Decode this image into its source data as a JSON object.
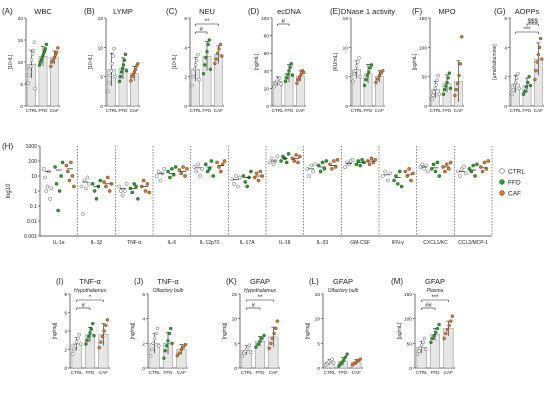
{
  "colors": {
    "CTRL": "#ffffff",
    "FFD": "#1fa51f",
    "CAF": "#e07a22",
    "bar": "#e6e6e6",
    "axis": "#333333"
  },
  "groups": [
    "CTRL",
    "FFD",
    "CAF"
  ],
  "chart_data": [
    {
      "type": "bar",
      "panel": "(A)",
      "title": "WBC",
      "ylabel": "[10⁹/L]",
      "categories": [
        "CTRL",
        "FFD",
        "CAF"
      ],
      "ylim": [
        0,
        20
      ],
      "yticks": [
        "0",
        "5",
        "10",
        "15",
        "20"
      ],
      "values": [
        9.5,
        11.3,
        11.0
      ],
      "errors": [
        3.2,
        2.2,
        1.5
      ],
      "points": [
        [
          5.2,
          7.0,
          8.5,
          9.0,
          10.5,
          11.8,
          12.6,
          14.5,
          4.0
        ],
        [
          9.3,
          10.0,
          10.6,
          11.2,
          11.8,
          12.4,
          13.0,
          14.0
        ],
        [
          9.0,
          10.0,
          10.4,
          11.0,
          11.6,
          12.2,
          13.2
        ]
      ],
      "sig": []
    },
    {
      "type": "bar",
      "panel": "(B)",
      "title": "LYMP",
      "ylabel": "[10⁹/L]",
      "categories": [
        "CTRL",
        "FFD",
        "CAF"
      ],
      "ylim": [
        0,
        15
      ],
      "yticks": [
        "0",
        "5",
        "10",
        "15"
      ],
      "values": [
        6.2,
        6.4,
        5.5
      ],
      "errors": [
        2.8,
        1.8,
        1.2
      ],
      "points": [
        [
          2.5,
          4.0,
          5.2,
          6.0,
          7.2,
          8.5,
          9.8,
          5.0
        ],
        [
          4.2,
          5.0,
          5.8,
          6.4,
          7.0,
          7.8,
          8.8,
          6.0
        ],
        [
          4.3,
          5.0,
          5.4,
          5.8,
          6.2,
          6.8,
          7.2
        ]
      ],
      "sig": []
    },
    {
      "type": "bar",
      "panel": "(C)",
      "title": "NEU",
      "ylabel": "[10⁹/L]",
      "categories": [
        "CTRL",
        "FFD",
        "CAF"
      ],
      "ylim": [
        0,
        6
      ],
      "yticks": [
        "0",
        "2",
        "4",
        "6"
      ],
      "values": [
        2.5,
        3.4,
        3.5
      ],
      "errors": [
        0.8,
        1.0,
        0.6
      ],
      "points": [
        [
          1.4,
          2.0,
          2.5,
          2.8,
          3.1,
          3.5,
          1.8
        ],
        [
          2.2,
          2.8,
          3.3,
          3.7,
          4.2,
          4.5,
          2.5
        ],
        [
          2.9,
          3.2,
          3.6,
          3.9,
          4.2,
          3.4
        ]
      ],
      "sig": [
        {
          "from": 0,
          "to": 1,
          "label": "#"
        },
        {
          "from": 0,
          "to": 2,
          "label": "**"
        }
      ]
    },
    {
      "type": "bar",
      "panel": "(D)",
      "title": "ecDNA",
      "ylabel": "[ng/mL]",
      "categories": [
        "CTRL",
        "FFD",
        "CAF"
      ],
      "ylim": [
        0,
        100
      ],
      "yticks": [
        "0",
        "20",
        "40",
        "60",
        "80",
        "100"
      ],
      "values": [
        28,
        37,
        34
      ],
      "errors": [
        5,
        10,
        6
      ],
      "points": [
        [
          22,
          26,
          28,
          30,
          32,
          25
        ],
        [
          28,
          32,
          36,
          40,
          44,
          48,
          35
        ],
        [
          26,
          30,
          33,
          36,
          40,
          38
        ]
      ],
      "sig": [
        {
          "from": 0,
          "to": 1,
          "label": "#"
        }
      ]
    },
    {
      "type": "bar",
      "panel": "(E)",
      "title": "DNase 1 activity",
      "ylabel": "[KU/mL]",
      "categories": [
        "CTRL",
        "FFD",
        "CAF"
      ],
      "ylim": [
        0,
        15
      ],
      "yticks": [
        "0",
        "5",
        "10",
        "15"
      ],
      "values": [
        6.2,
        5.5,
        5.0
      ],
      "errors": [
        1.5,
        1.6,
        1.0
      ],
      "points": [
        [
          4.2,
          5.5,
          6.0,
          6.8,
          7.5,
          8.2,
          5.0
        ],
        [
          3.5,
          4.5,
          5.2,
          5.8,
          6.5,
          7.0
        ],
        [
          4.0,
          4.6,
          5.2,
          5.6,
          6.0
        ]
      ],
      "sig": []
    },
    {
      "type": "bar",
      "panel": "(F)",
      "title": "MPO",
      "ylabel": "[pg/mL]",
      "categories": [
        "CTRL",
        "FFD",
        "CAF"
      ],
      "ylim": [
        0,
        150
      ],
      "yticks": [
        "0",
        "50",
        "100",
        "150"
      ],
      "values": [
        28,
        38,
        42
      ],
      "errors": [
        14,
        15,
        35
      ],
      "points": [
        [
          12,
          18,
          24,
          30,
          36,
          44,
          52,
          20
        ],
        [
          20,
          28,
          34,
          40,
          48,
          56,
          30
        ],
        [
          18,
          28,
          38,
          52,
          72,
          118
        ]
      ],
      "sig": []
    },
    {
      "type": "bar",
      "panel": "(G)",
      "title": "AOPPs",
      "ylabel": "[µmol/albumine]",
      "categories": [
        "CTRL",
        "FFD",
        "CAF"
      ],
      "ylim": [
        0,
        6
      ],
      "yticks": [
        "0",
        "2",
        "4",
        "6"
      ],
      "values": [
        1.5,
        1.4,
        3.2
      ],
      "errors": [
        0.6,
        0.5,
        1.1
      ],
      "points": [
        [
          0.8,
          1.1,
          1.4,
          1.6,
          1.9,
          2.2,
          1.2
        ],
        [
          0.8,
          1.0,
          1.3,
          1.6,
          2.0,
          1.4
        ],
        [
          1.8,
          2.4,
          3.0,
          3.5,
          4.0,
          4.6,
          3.2
        ]
      ],
      "sig": [
        {
          "from": 0,
          "to": 2,
          "label": "***"
        },
        {
          "from": 1,
          "to": 2,
          "label": "$$$"
        }
      ]
    },
    {
      "type": "scatter",
      "panel": "(H)",
      "ylabel": "log10",
      "ylim": [
        0.001,
        1000
      ],
      "log": true,
      "yticks": [
        "0.001",
        "0.01",
        "0.1",
        "1",
        "10",
        "100",
        "1000"
      ],
      "categories": [
        "IL-1α",
        "IL-1β",
        "TNF-α",
        "IL-6",
        "IL-12p70",
        "IL-17A",
        "IL-18",
        "IL-33",
        "GM-CSF",
        "IFN-γ",
        "CXCL1/KC",
        "CCL2/MCP-1"
      ],
      "legend": [
        "CTRL",
        "FFD",
        "CAF"
      ],
      "series": [
        {
          "name": "CTRL",
          "values": [
            [
              30,
              8,
              1,
              2,
              20,
              0.3,
              1.5
            ],
            [
              2,
              0.03,
              5,
              1.5,
              8,
              3
            ],
            [
              2,
              1,
              0.5,
              1,
              3
            ],
            [
              10,
              20,
              5,
              15,
              30
            ],
            [
              40,
              20,
              60,
              10,
              30
            ],
            [
              6,
              3,
              10,
              2,
              8
            ],
            [
              80,
              150,
              60,
              100,
              200
            ],
            [
              30,
              10,
              50,
              20,
              60
            ],
            [
              40,
              80,
              60,
              100,
              120
            ],
            [
              10,
              20,
              5,
              15
            ],
            [
              40,
              60,
              30,
              50,
              20
            ],
            [
              20,
              10,
              30,
              40,
              15
            ]
          ],
          "mean": [
            20,
            4,
            1.5,
            15,
            35,
            6,
            100,
            30,
            70,
            12,
            40,
            20
          ]
        },
        {
          "name": "FFD",
          "values": [
            [
              40,
              3,
              0.05,
              1,
              10,
              80
            ],
            [
              3,
              1,
              0.3,
              2,
              5
            ],
            [
              1.5,
              0.8,
              3,
              2,
              0.3
            ],
            [
              20,
              8,
              30,
              12,
              40
            ],
            [
              60,
              20,
              30,
              100,
              10
            ],
            [
              10,
              4,
              2,
              8,
              20
            ],
            [
              100,
              200,
              150,
              80,
              300
            ],
            [
              50,
              20,
              80,
              30,
              100
            ],
            [
              60,
              100,
              50,
              120,
              80
            ],
            [
              5,
              10,
              3,
              20,
              2
            ],
            [
              30,
              60,
              20,
              80,
              10
            ],
            [
              30,
              20,
              50,
              10,
              60
            ]
          ],
          "mean": [
            25,
            2,
            1.5,
            15,
            40,
            8,
            150,
            40,
            80,
            8,
            35,
            25
          ]
        },
        {
          "name": "CAF",
          "values": [
            [
              50,
              20,
              5,
              80,
              10,
              2
            ],
            [
              4,
              2,
              8,
              1,
              3
            ],
            [
              2,
              5,
              1,
              3,
              0.8
            ],
            [
              25,
              15,
              40,
              10,
              30
            ],
            [
              80,
              40,
              20,
              60,
              100
            ],
            [
              8,
              15,
              5,
              20,
              10
            ],
            [
              150,
              100,
              250,
              80,
              200
            ],
            [
              60,
              30,
              100,
              40,
              120
            ],
            [
              100,
              60,
              150,
              80,
              120
            ],
            [
              20,
              10,
              30,
              5,
              15
            ],
            [
              40,
              20,
              60,
              30,
              80
            ],
            [
              40,
              20,
              80,
              30,
              100
            ]
          ],
          "mean": [
            30,
            3,
            2,
            20,
            50,
            10,
            150,
            50,
            100,
            12,
            40,
            35
          ]
        }
      ]
    },
    {
      "type": "bar",
      "panel": "(I)",
      "title": "TNF-α",
      "subtitle": "Hypothalamus",
      "ylabel": "[ng/mg]",
      "categories": [
        "CTRL",
        "FFD",
        "CAF"
      ],
      "ylim": [
        0,
        8
      ],
      "yticks": [
        "0",
        "2",
        "4",
        "6",
        "8"
      ],
      "values": [
        2.6,
        3.6,
        3.6
      ],
      "errors": [
        0.7,
        0.8,
        1.2
      ],
      "points": [
        [
          1.5,
          2.0,
          2.4,
          2.8,
          3.2,
          3.6,
          2.6
        ],
        [
          2.6,
          3.0,
          3.4,
          3.8,
          4.2,
          4.8,
          3.5
        ],
        [
          2.2,
          2.8,
          3.4,
          4.0,
          4.6,
          5.2
        ]
      ],
      "sig": [
        {
          "from": 0,
          "to": 1,
          "label": "#"
        },
        {
          "from": 0,
          "to": 2,
          "label": "*"
        }
      ]
    },
    {
      "type": "bar",
      "panel": "(J)",
      "title": "TNF-α",
      "subtitle": "Olfactory bulb",
      "ylabel": "[ng/mg]",
      "categories": [
        "CTRL",
        "FFD",
        "CAF"
      ],
      "ylim": [
        0,
        6
      ],
      "yticks": [
        "0",
        "2",
        "4",
        "6"
      ],
      "values": [
        2.0,
        2.0,
        1.5
      ],
      "errors": [
        0.8,
        0.9,
        0.4
      ],
      "points": [
        [
          1.0,
          1.5,
          2.0,
          2.4,
          2.8,
          3.2,
          1.8
        ],
        [
          0.8,
          1.4,
          1.8,
          2.2,
          2.8,
          3.2,
          2.0
        ],
        [
          1.0,
          1.2,
          1.5,
          1.7,
          1.9
        ]
      ],
      "sig": []
    },
    {
      "type": "bar",
      "panel": "(K)",
      "title": "GFAP",
      "subtitle": "Hypothalamus",
      "ylabel": "[ng/mg]",
      "categories": [
        "CTRL",
        "FFD",
        "CAF"
      ],
      "ylim": [
        0,
        15
      ],
      "yticks": [
        "0",
        "5",
        "10",
        "15"
      ],
      "values": [
        3.6,
        5.4,
        6.3
      ],
      "errors": [
        0.9,
        1.0,
        2.0
      ],
      "points": [
        [
          2.4,
          3.0,
          3.4,
          3.8,
          4.2,
          4.6,
          3.2
        ],
        [
          4.2,
          4.8,
          5.4,
          6.0,
          6.6
        ],
        [
          4.0,
          5.0,
          6.0,
          7.0,
          8.0,
          9.5
        ]
      ],
      "sig": [
        {
          "from": 0,
          "to": 1,
          "label": "#"
        },
        {
          "from": 0,
          "to": 2,
          "label": "**"
        }
      ]
    },
    {
      "type": "bar",
      "panel": "(L)",
      "title": "GFAP",
      "subtitle": "Olfactory bulb",
      "ylabel": "[ng/mg]",
      "categories": [
        "CTRL",
        "FFD",
        "CAF"
      ],
      "ylim": [
        0,
        15
      ],
      "yticks": [
        "0",
        "5",
        "10",
        "15"
      ],
      "values": [
        1.2,
        1.3,
        1.2
      ],
      "errors": [
        0.5,
        0.8,
        0.5
      ],
      "points": [
        [
          0.6,
          0.9,
          1.2,
          1.5,
          1.8,
          1.0
        ],
        [
          0.4,
          0.8,
          1.2,
          1.6,
          2.2,
          2.8
        ],
        [
          0.6,
          0.9,
          1.2,
          1.5,
          1.8
        ]
      ],
      "sig": []
    },
    {
      "type": "bar",
      "panel": "(M)",
      "title": "GFAP",
      "subtitle": "Plasma",
      "ylabel": "[pg/mL]",
      "categories": [
        "CTRL",
        "FFD",
        "CAF"
      ],
      "ylim": [
        0,
        150
      ],
      "yticks": [
        "0",
        "50",
        "100",
        "150"
      ],
      "values": [
        42,
        68,
        80
      ],
      "errors": [
        12,
        12,
        15
      ],
      "points": [
        [
          28,
          34,
          40,
          46,
          52,
          60,
          38
        ],
        [
          52,
          60,
          66,
          72,
          80,
          88
        ],
        [
          60,
          70,
          78,
          86,
          95,
          105
        ]
      ],
      "sig": [
        {
          "from": 0,
          "to": 1,
          "label": "##"
        },
        {
          "from": 0,
          "to": 2,
          "label": "***"
        }
      ]
    }
  ]
}
